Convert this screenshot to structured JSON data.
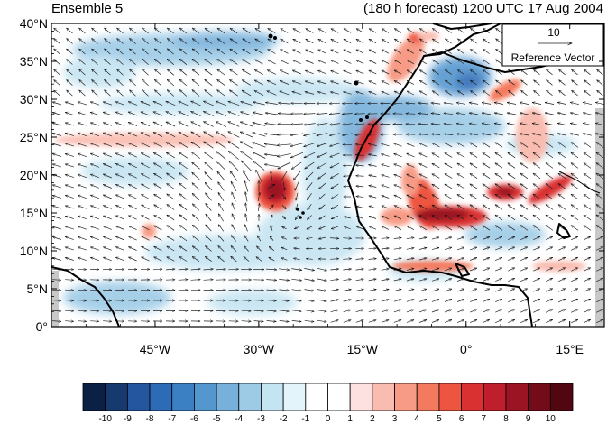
{
  "header": {
    "left_title": "Ensemble 5",
    "right_title": "(180 h forecast) 1200 UTC 17 Aug 2004"
  },
  "map": {
    "lon_range": [
      -60,
      20
    ],
    "lat_range": [
      0,
      40
    ],
    "lat_ticks": [
      {
        "value": 40,
        "label": "40°N"
      },
      {
        "value": 35,
        "label": "35°N"
      },
      {
        "value": 30,
        "label": "30°N"
      },
      {
        "value": 25,
        "label": "25°N"
      },
      {
        "value": 20,
        "label": "20°N"
      },
      {
        "value": 15,
        "label": "15°N"
      },
      {
        "value": 10,
        "label": "10°N"
      },
      {
        "value": 5,
        "label": "5°N"
      },
      {
        "value": 0,
        "label": "0°"
      }
    ],
    "lon_ticks": [
      {
        "value": -45,
        "label": "45°W"
      },
      {
        "value": -30,
        "label": "30°W"
      },
      {
        "value": -15,
        "label": "15°W"
      },
      {
        "value": 0,
        "label": "0°"
      },
      {
        "value": 15,
        "label": "15°E"
      }
    ],
    "reference_vector": {
      "value": "10",
      "label": "Reference Vector"
    },
    "cyclone_center": {
      "lon": -28,
      "lat": 20
    }
  },
  "colorbar": {
    "labels": [
      "-10",
      "-9",
      "-8",
      "-7",
      "-6",
      "-5",
      "-4",
      "-3",
      "-2",
      "-1",
      "0",
      "1",
      "2",
      "3",
      "4",
      "5",
      "6",
      "7",
      "8",
      "9",
      "10"
    ],
    "colors": [
      "#0b2045",
      "#163a6e",
      "#2456a0",
      "#2e6bb6",
      "#3a80c3",
      "#5497cf",
      "#77b0da",
      "#9dcbe6",
      "#c5e4f2",
      "#e4f4fb",
      "#ffffff",
      "#ffffff",
      "#fde1e0",
      "#f9bcb0",
      "#f79b86",
      "#f47a5f",
      "#ee5540",
      "#d93032",
      "#bf1e2d",
      "#9a1423",
      "#730b18",
      "#520610"
    ]
  }
}
